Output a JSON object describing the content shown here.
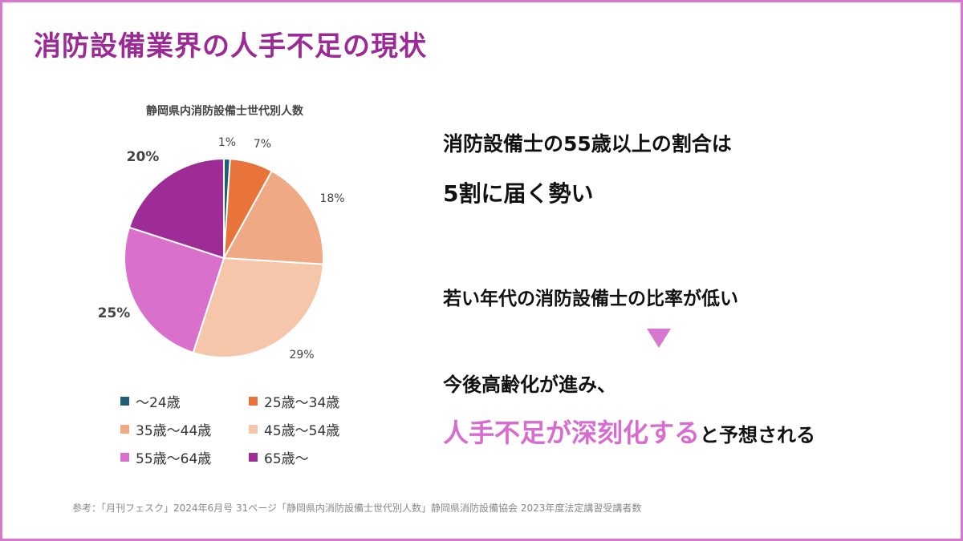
{
  "page": {
    "title": "消防設備業界の人手不足の現状",
    "source": "参考：「月刊フェスク」2024年6月号 31ページ「静岡県内消防設備士世代別人数」静岡県消防設備協会 2023年度法定講習受講者数"
  },
  "chart_data": {
    "type": "pie",
    "title": "静岡県内消防設備士世代別人数",
    "slices": [
      {
        "label": "〜24歳",
        "value": 1,
        "value_label": "1%",
        "color": "#1f5f77"
      },
      {
        "label": "25歳〜34歳",
        "value": 7,
        "value_label": "7%",
        "color": "#e8743b"
      },
      {
        "label": "35歳〜44歳",
        "value": 18,
        "value_label": "18%",
        "color": "#f0a985"
      },
      {
        "label": "45歳〜54歳",
        "value": 29,
        "value_label": "29%",
        "color": "#f6c6ab"
      },
      {
        "label": "55歳〜64歳",
        "value": 25,
        "value_label": "25%",
        "color": "#d870cc"
      },
      {
        "label": "65歳〜",
        "value": 20,
        "value_label": "20%",
        "color": "#9e2c96"
      }
    ],
    "legend_position": "bottom"
  },
  "messages": {
    "line1": "消防設備士の55歳以上の割合は",
    "line2": "5割に届く勢い",
    "line3": "若い年代の消防設備士の比率が低い",
    "line4": "今後高齢化が進み、",
    "line5_accent": "人手不足が深刻化する",
    "line5_rest": "と予想される"
  },
  "colors": {
    "title": "#9b2a97",
    "frame": "#d877d0",
    "accent": "#d86bcf",
    "arrow": "#d877d0"
  }
}
